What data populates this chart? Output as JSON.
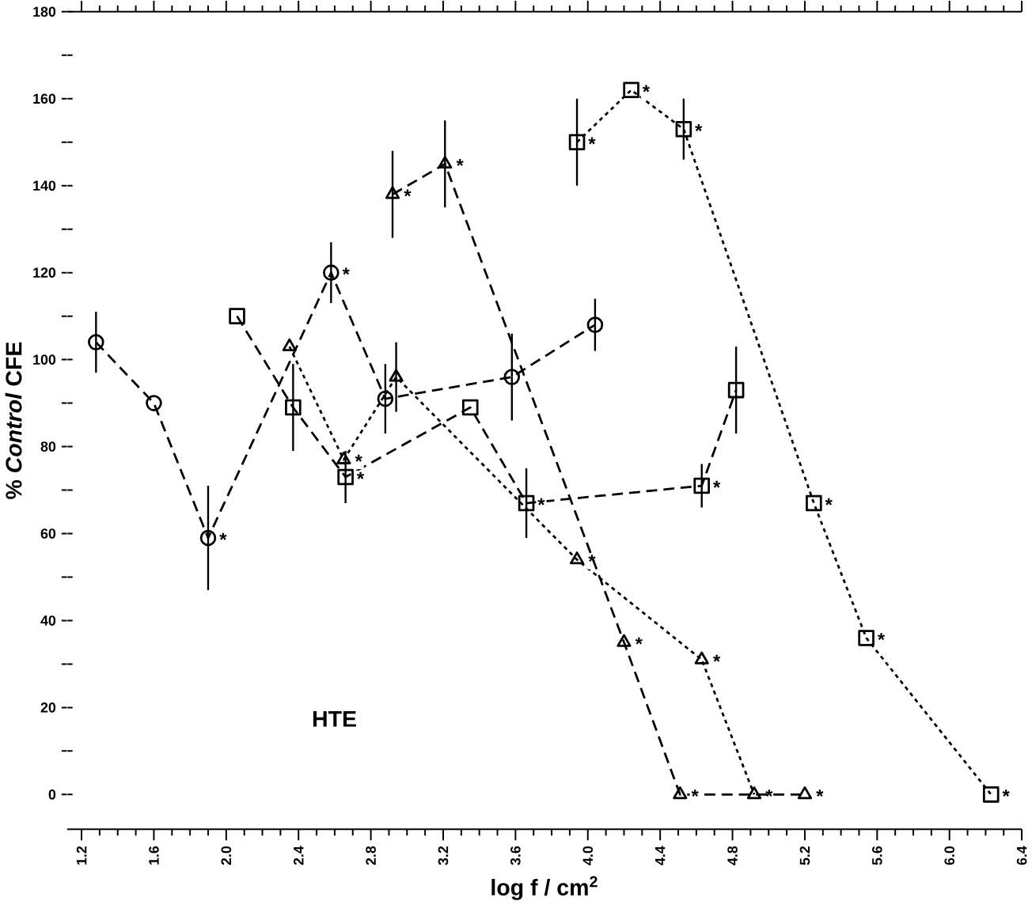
{
  "chart_data": {
    "type": "line",
    "xlabel": "log f / cm$^{2}$",
    "ylabel": "% *Control* CFE",
    "annotations": [
      "HTE"
    ],
    "xlim": [
      1.12,
      6.4
    ],
    "ylim": [
      -8,
      180
    ],
    "xticks": [
      1.2,
      1.6,
      {
        "value": 2.0,
        "label": "2.0"
      },
      2.4,
      2.8,
      3.2,
      3.6,
      {
        "value": 4.0,
        "label": "4.0"
      },
      4.4,
      4.8,
      5.2,
      5.6,
      {
        "value": 6.0,
        "label": "6.0"
      },
      6.4
    ],
    "yticks": [
      0,
      {
        "value": 10,
        "label": null
      },
      20,
      {
        "value": 30,
        "label": null
      },
      40,
      {
        "value": 50,
        "label": null
      },
      60,
      {
        "value": 70,
        "label": null
      },
      80,
      {
        "value": 90,
        "label": null
      },
      100,
      {
        "value": 110,
        "label": null
      },
      120,
      {
        "value": 130,
        "label": null
      },
      140,
      {
        "value": 150,
        "label": null
      },
      160,
      {
        "value": 170,
        "label": null
      },
      180
    ],
    "series": [
      {
        "color": "#000000",
        "marker": "circle",
        "line_style": "dashed",
        "x": [
          1.28,
          1.6,
          1.9,
          2.58,
          2.88,
          3.58,
          4.04
        ],
        "values": [
          104,
          90,
          59,
          120,
          91,
          96,
          108
        ],
        "errors": [
          7,
          null,
          12,
          7,
          8,
          10,
          6
        ],
        "value_labels": [
          null,
          null,
          "*",
          "*",
          null,
          null,
          null
        ]
      },
      {
        "color": "#000000",
        "marker": "square",
        "line_style": "dashed",
        "x": [
          2.06,
          2.37,
          2.66,
          3.35,
          3.66,
          4.63,
          4.82
        ],
        "values": [
          110,
          89,
          73,
          89,
          67,
          71,
          93
        ],
        "errors": [
          null,
          10,
          6,
          null,
          8,
          5,
          10
        ],
        "value_labels": [
          null,
          null,
          "*",
          null,
          "*",
          "*",
          null
        ]
      },
      {
        "color": "#000000",
        "marker": "triangle",
        "line_style": "dotted",
        "x": [
          2.35,
          2.65,
          2.94,
          3.94,
          4.63,
          4.92
        ],
        "values": [
          103,
          77,
          96,
          54,
          31,
          0
        ],
        "errors": [
          null,
          null,
          8,
          null,
          null,
          null
        ],
        "value_labels": [
          null,
          "*",
          null,
          "*",
          "*",
          "*"
        ]
      },
      {
        "color": "#000000",
        "marker": "triangle",
        "line_style": "dashed",
        "x": [
          2.92,
          3.21,
          4.2,
          4.51,
          5.2
        ],
        "values": [
          138,
          145,
          35,
          0,
          0
        ],
        "errors": [
          10,
          10,
          null,
          null,
          null
        ],
        "value_labels": [
          "*",
          "*",
          "*",
          "*",
          "*"
        ]
      },
      {
        "color": "#000000",
        "marker": "square",
        "line_style": "dotted",
        "x": [
          3.94,
          4.24,
          4.53,
          5.25,
          5.54,
          6.23
        ],
        "values": [
          150,
          162,
          153,
          67,
          36,
          0
        ],
        "errors": [
          10,
          null,
          7,
          null,
          null,
          null
        ],
        "value_labels": [
          "*",
          "*",
          "*",
          "*",
          "*",
          "*"
        ]
      }
    ]
  }
}
